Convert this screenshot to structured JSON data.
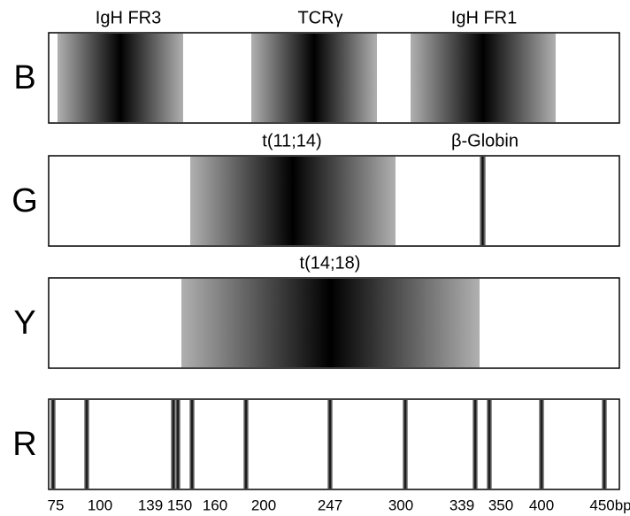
{
  "lanes": [
    {
      "label": "B",
      "bands": [
        {
          "label": "IgH FR3"
        },
        {
          "label": "TCRγ"
        },
        {
          "label": "IgH FR1"
        }
      ]
    },
    {
      "label": "G",
      "bands": [
        {
          "label": "t(11;14)"
        },
        {
          "label": "β-Globin"
        }
      ]
    },
    {
      "label": "Y",
      "bands": [
        {
          "label": "t(14;18)"
        }
      ]
    },
    {
      "label": "R"
    }
  ],
  "markers": [
    "75",
    "100",
    "139",
    "150",
    "160",
    "200",
    "247",
    "300",
    "339",
    "350",
    "400",
    "450bp"
  ]
}
